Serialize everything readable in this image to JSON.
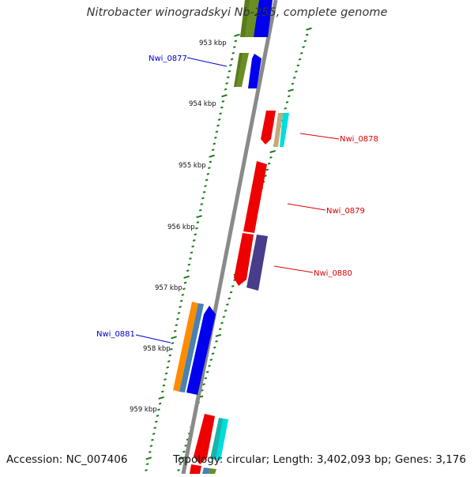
{
  "title": "Nitrobacter winogradskyi Nb-255, complete genome",
  "footer": {
    "accession": "Accession: NC_007406",
    "topology": "Topology: circular; Length: 3,402,093 bp; Genes: 3,176"
  },
  "scale_labels": [
    "953 kbp",
    "954 kbp",
    "955 kbp",
    "956 kbp",
    "957 kbp",
    "958 kbp",
    "959 kbp"
  ],
  "gene_labels": [
    {
      "id": "nwi_0877",
      "text": "Nwi_0877",
      "color": "#0000cc"
    },
    {
      "id": "nwi_0878",
      "text": "Nwi_0878",
      "color": "#dd0000"
    },
    {
      "id": "nwi_0879",
      "text": "Nwi_0879",
      "color": "#dd0000"
    },
    {
      "id": "nwi_0880",
      "text": "Nwi_0880",
      "color": "#dd0000"
    },
    {
      "id": "nwi_0881",
      "text": "Nwi_0881",
      "color": "#0000cc"
    }
  ],
  "colors": {
    "backbone": "#8a8a8a",
    "ticks": "#1a7a1a",
    "red": "#ee0000",
    "blue": "#0000ee",
    "olive": "#6b8e23",
    "tan": "#c8a878",
    "cyan": "#00dddd",
    "slate": "#483d8b",
    "orange": "#ff8c00",
    "steel": "#4682b4",
    "teal": "#20b2aa"
  }
}
